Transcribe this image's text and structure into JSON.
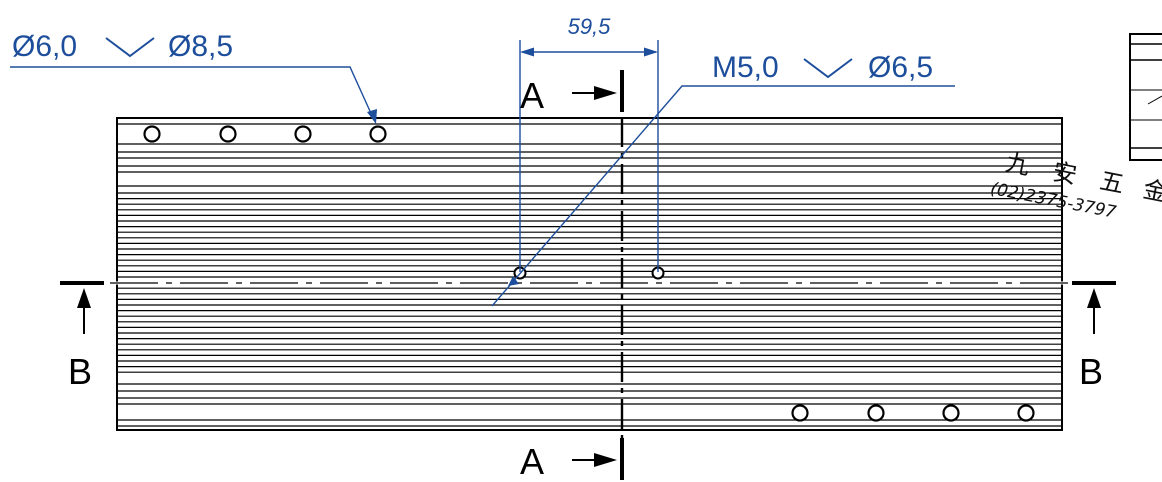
{
  "callouts": {
    "counterbore_left": "Ø6,0 ⌵ Ø8,5",
    "counterbore_left_a": "Ø6,0",
    "counterbore_left_b": "Ø8,5",
    "tapped_hole": "M5,0 ⌵ Ø6,5",
    "tapped_hole_a": "M5,0",
    "tapped_hole_b": "Ø6,5",
    "dimension": "59,5"
  },
  "section_labels": {
    "a_top": "A",
    "a_bottom": "A",
    "b_left": "B",
    "b_right": "B"
  },
  "watermark": {
    "chars": [
      "九",
      "安",
      "五",
      "金"
    ],
    "phone": "(02)2375-3797"
  },
  "colors": {
    "dimension_blue": "#1d4e9c",
    "line_black": "#000000"
  }
}
